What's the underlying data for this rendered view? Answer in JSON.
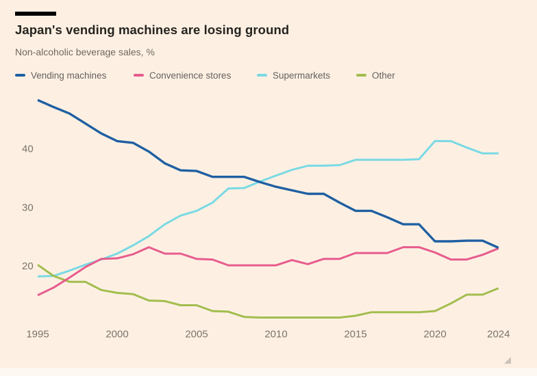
{
  "header": {
    "title": "Japan's vending machines are losing ground",
    "subtitle": "Non-alcoholic beverage sales, %"
  },
  "colors": {
    "background": "#fdf0e3",
    "title_text": "#262420",
    "muted_text": "#66605c",
    "axis_text": "#7b7369",
    "vending": "#1f5fa2",
    "convenience": "#e75c8d",
    "supermarkets": "#7ad9e3",
    "other": "#a2bd4e"
  },
  "legend": {
    "items": [
      {
        "label": "Vending machines",
        "series": "vending"
      },
      {
        "label": "Convenience stores",
        "series": "convenience"
      },
      {
        "label": "Supermarkets",
        "series": "supermarkets"
      },
      {
        "label": "Other",
        "series": "other"
      }
    ]
  },
  "icons": {
    "resize_grip": "resize-grip-icon"
  },
  "chart_data": {
    "type": "line",
    "title": "Japan's vending machines are losing ground",
    "subtitle": "Non-alcoholic beverage sales, %",
    "xlabel": "",
    "ylabel": "%",
    "grid": false,
    "legend_position": "top",
    "xlim": [
      1995,
      2024
    ],
    "ylim": [
      10,
      50
    ],
    "xticks": [
      1995,
      2000,
      2005,
      2010,
      2015,
      2020,
      2024
    ],
    "yticks": [
      20,
      30,
      40
    ],
    "x": [
      1995,
      1996,
      1997,
      1998,
      1999,
      2000,
      2001,
      2002,
      2003,
      2004,
      2005,
      2006,
      2007,
      2008,
      2009,
      2010,
      2011,
      2012,
      2013,
      2014,
      2015,
      2016,
      2017,
      2018,
      2019,
      2020,
      2021,
      2022,
      2023,
      2024
    ],
    "series": [
      {
        "name": "Vending machines",
        "color_key": "vending",
        "values": [
          48.3,
          47.1,
          46.0,
          44.3,
          42.6,
          41.3,
          41.0,
          39.5,
          37.5,
          36.3,
          36.2,
          35.2,
          35.2,
          35.2,
          34.3,
          33.5,
          32.9,
          32.3,
          32.3,
          30.8,
          29.4,
          29.4,
          28.3,
          27.1,
          27.1,
          24.2,
          24.2,
          24.3,
          24.3,
          23.1
        ]
      },
      {
        "name": "Convenience stores",
        "color_key": "convenience",
        "values": [
          15.0,
          16.3,
          18.0,
          19.8,
          21.2,
          21.3,
          22.0,
          23.2,
          22.1,
          22.1,
          21.2,
          21.1,
          20.1,
          20.1,
          20.1,
          20.1,
          21.0,
          20.3,
          21.2,
          21.2,
          22.2,
          22.2,
          22.2,
          23.2,
          23.2,
          22.3,
          21.1,
          21.1,
          21.9,
          23.0
        ]
      },
      {
        "name": "Supermarkets",
        "color_key": "supermarkets",
        "values": [
          18.2,
          18.3,
          19.2,
          20.2,
          21.1,
          22.1,
          23.5,
          25.1,
          27.1,
          28.6,
          29.4,
          30.8,
          33.2,
          33.3,
          34.4,
          35.4,
          36.4,
          37.1,
          37.1,
          37.2,
          38.1,
          38.1,
          38.1,
          38.1,
          38.2,
          41.3,
          41.3,
          40.2,
          39.2,
          39.2
        ]
      },
      {
        "name": "Other",
        "color_key": "other",
        "values": [
          20.2,
          18.3,
          17.3,
          17.3,
          15.9,
          15.4,
          15.2,
          14.1,
          14.0,
          13.3,
          13.3,
          12.3,
          12.2,
          11.3,
          11.2,
          11.2,
          11.2,
          11.2,
          11.2,
          11.2,
          11.5,
          12.1,
          12.1,
          12.1,
          12.1,
          12.3,
          13.6,
          15.1,
          15.1,
          16.2
        ]
      }
    ]
  }
}
